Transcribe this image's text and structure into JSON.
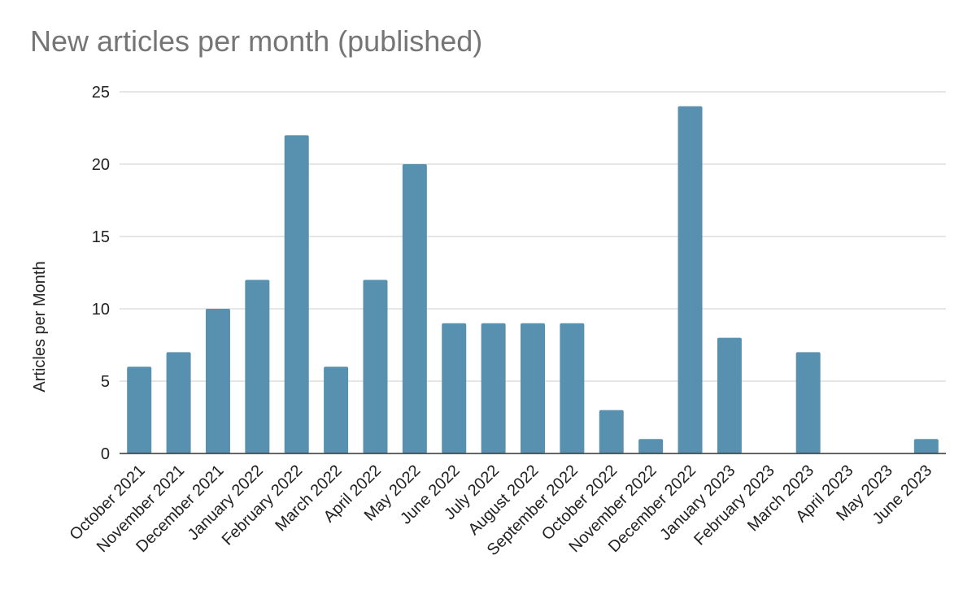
{
  "chart_data": {
    "type": "bar",
    "title": "New articles per month (published)",
    "xlabel": "",
    "ylabel": "Articles per Month",
    "ylim": [
      0,
      25
    ],
    "yticks": [
      0,
      5,
      10,
      15,
      20,
      25
    ],
    "grid": true,
    "legend": "none",
    "colors": {
      "bar": "#5891b0",
      "grid": "#cccccc",
      "axis": "#333333",
      "title": "#757575"
    },
    "categories": [
      "October 2021",
      "November 2021",
      "December 2021",
      "January 2022",
      "February 2022",
      "March 2022",
      "April 2022",
      "May 2022",
      "June 2022",
      "July 2022",
      "August 2022",
      "September 2022",
      "October 2022",
      "November 2022",
      "December 2022",
      "January 2023",
      "February 2023",
      "March 2023",
      "April 2023",
      "May 2023",
      "June 2023"
    ],
    "values": [
      6,
      7,
      10,
      12,
      22,
      6,
      12,
      20,
      9,
      9,
      9,
      9,
      3,
      1,
      24,
      8,
      0,
      7,
      0,
      0,
      1
    ]
  }
}
